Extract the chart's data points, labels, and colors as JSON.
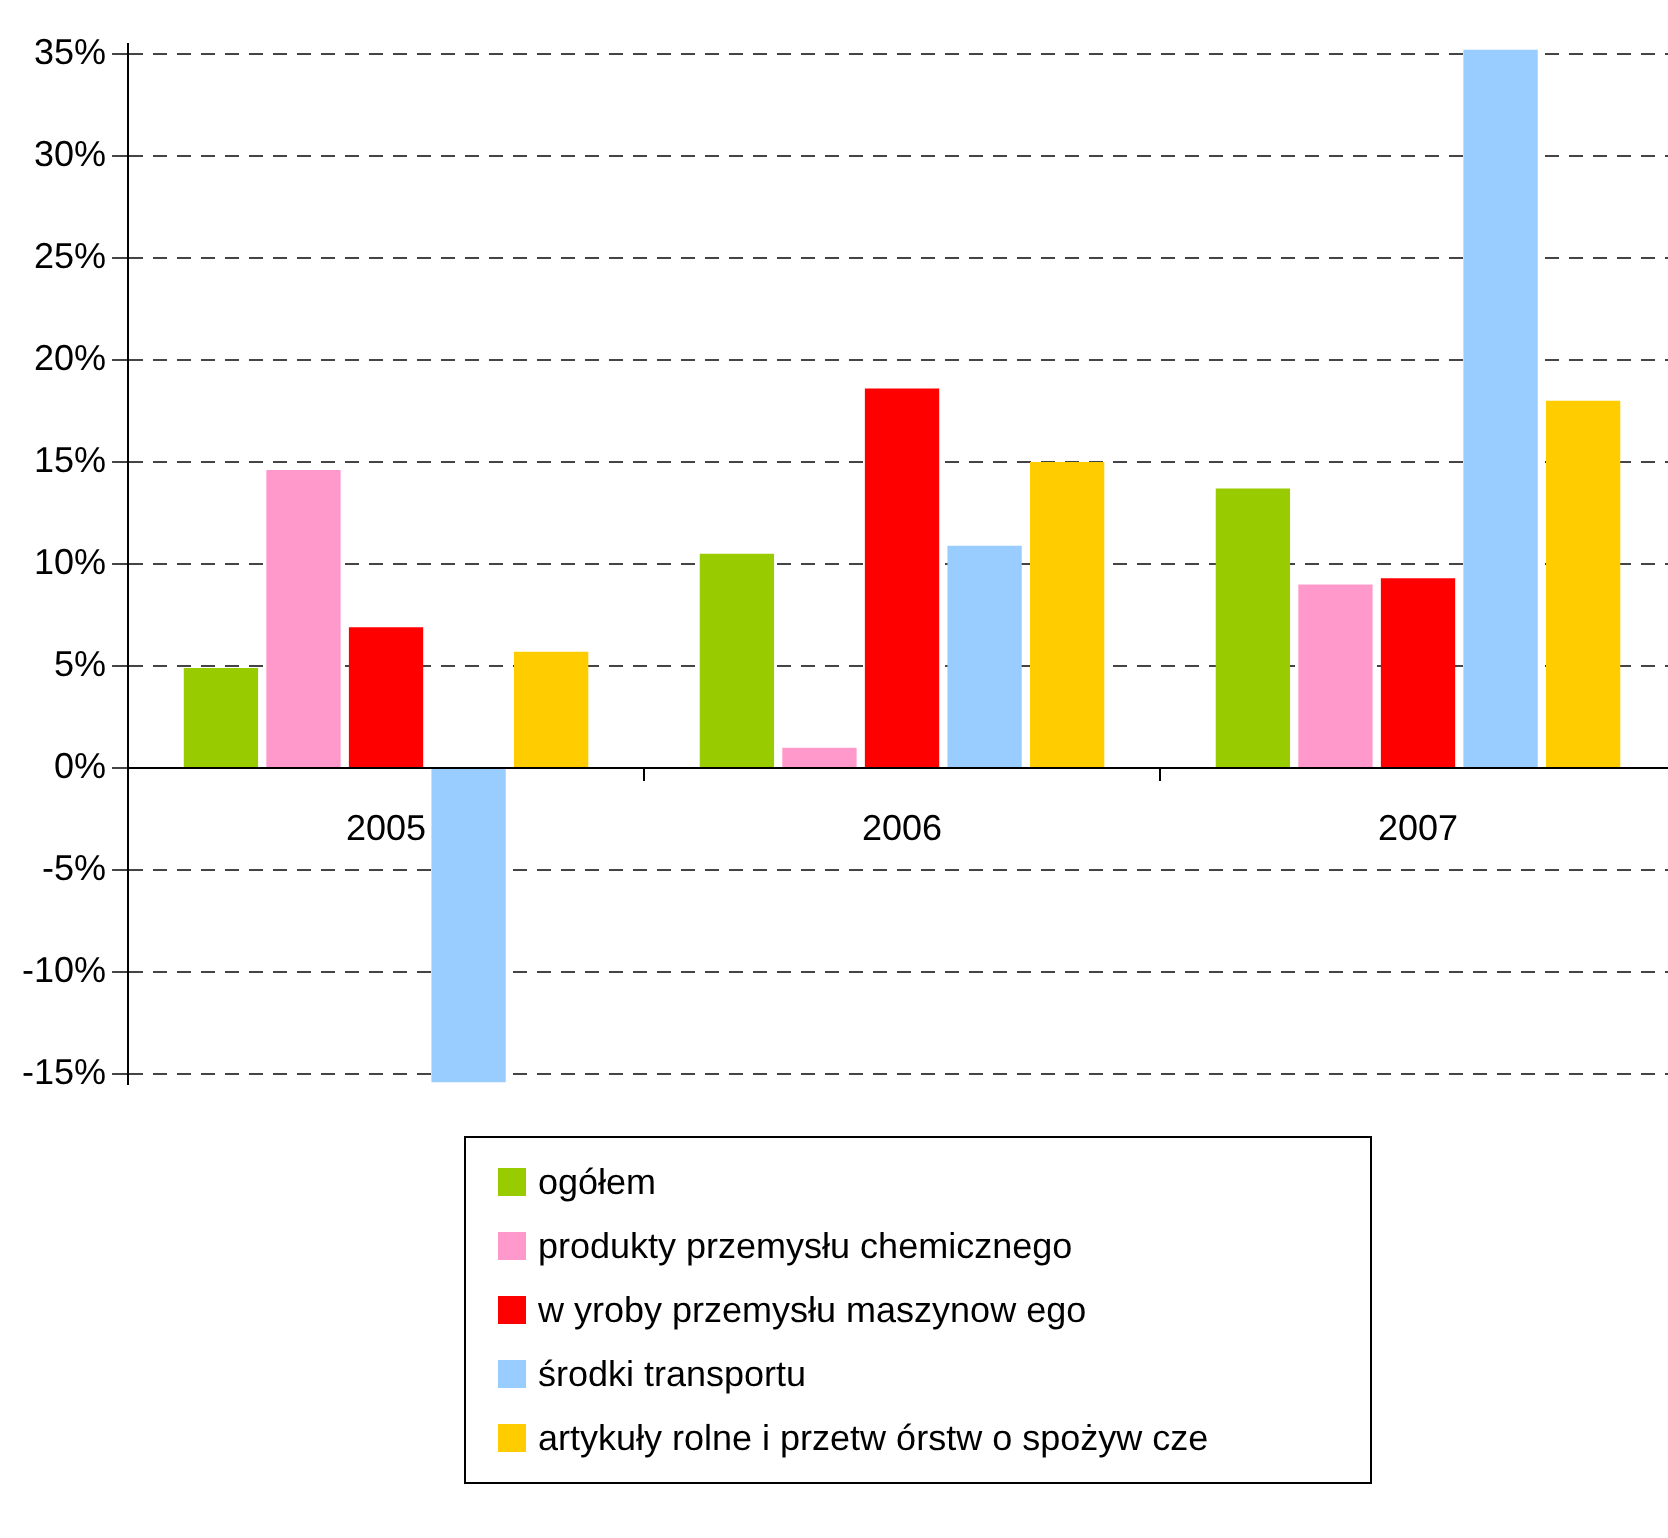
{
  "chart_data": {
    "type": "bar",
    "categories": [
      "2005",
      "2006",
      "2007"
    ],
    "series": [
      {
        "name": "ogółem",
        "color": "#99cc00",
        "values": [
          4.9,
          10.5,
          13.7
        ]
      },
      {
        "name": "produkty przemysłu chemicznego",
        "color": "#ff99cc",
        "values": [
          14.6,
          1.0,
          9.0
        ]
      },
      {
        "name": "w yroby przemysłu maszynow ego",
        "color": "#ff0000",
        "values": [
          6.9,
          18.6,
          9.3
        ]
      },
      {
        "name": "środki transportu",
        "color": "#99ccff",
        "values": [
          -15.4,
          10.9,
          35.2
        ]
      },
      {
        "name": "artykuły rolne i przetw órstw o spożyw cze",
        "color": "#ffcc00",
        "values": [
          5.7,
          15.0,
          18.0
        ]
      }
    ],
    "ylim": [
      -15.5,
      35.5
    ],
    "yticks": [
      {
        "value": -15,
        "label": "-15%"
      },
      {
        "value": -10,
        "label": "-10%"
      },
      {
        "value": -5,
        "label": "-5%"
      },
      {
        "value": 0,
        "label": "0%"
      },
      {
        "value": 5,
        "label": "5%"
      },
      {
        "value": 10,
        "label": "10%"
      },
      {
        "value": 15,
        "label": "15%"
      },
      {
        "value": 20,
        "label": "20%"
      },
      {
        "value": 25,
        "label": "25%"
      },
      {
        "value": 30,
        "label": "30%"
      },
      {
        "value": 35,
        "label": "35%"
      }
    ],
    "grid": "y",
    "legend": "bottom"
  }
}
